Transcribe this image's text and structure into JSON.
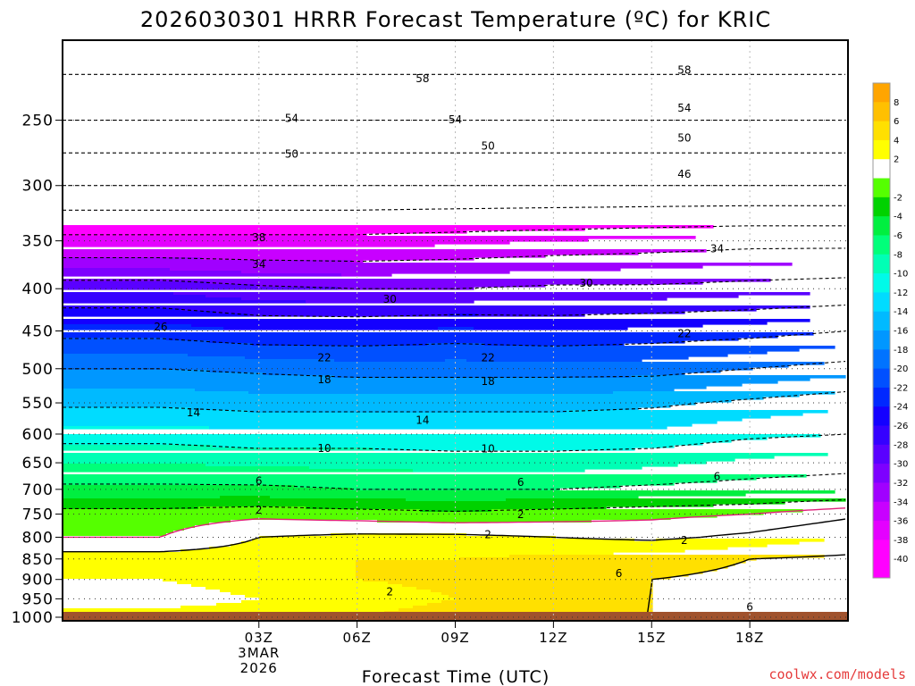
{
  "chart_data": {
    "type": "contour",
    "title": "2026030301 HRRR Forecast Temperature (ºC) for KRIC",
    "xlabel": "Forecast Time (UTC)",
    "credit": "coolwx.com/models",
    "y_axis": {
      "quantity": "pressure (hPa)",
      "scale": "log",
      "range": [
        1010,
        200
      ],
      "ticks": [
        250,
        300,
        350,
        400,
        450,
        500,
        550,
        600,
        650,
        700,
        750,
        800,
        850,
        900,
        950,
        1000
      ],
      "gridlines": "dotted at each tick"
    },
    "x_axis": {
      "quantity": "forecast hour",
      "range_hours": [
        -3,
        21
      ],
      "ticks": [
        {
          "hour": 3,
          "label": "03Z",
          "date_line1": "3MAR",
          "date_line2": "2026"
        },
        {
          "hour": 6,
          "label": "06Z"
        },
        {
          "hour": 9,
          "label": "09Z"
        },
        {
          "hour": 12,
          "label": "12Z"
        },
        {
          "hour": 15,
          "label": "15Z"
        },
        {
          "hour": 18,
          "label": "18Z"
        }
      ]
    },
    "x_hours": [
      0,
      3,
      6,
      9,
      12,
      15,
      18,
      21
    ],
    "colorbar": {
      "labels": [
        "8",
        "6",
        "4",
        "2",
        "-2",
        "-4",
        "-6",
        "-8",
        "-10",
        "-12",
        "-14",
        "-16",
        "-18",
        "-20",
        "-22",
        "-24",
        "-26",
        "-28",
        "-30",
        "-32",
        "-34",
        "-36",
        "-38",
        "-40"
      ],
      "levels": [
        10,
        8,
        6,
        4,
        2,
        0,
        -2,
        -4,
        -6,
        -8,
        -10,
        -12,
        -14,
        -16,
        -18,
        -20,
        -22,
        -24,
        -26,
        -28,
        -30,
        -32,
        -34,
        -36,
        -38,
        -40,
        -60
      ],
      "colors": [
        "#ffa500",
        "#ffc000",
        "#ffe000",
        "#ffff00",
        "#ffffff",
        "#55ff00",
        "#00d200",
        "#00ef40",
        "#00ff7a",
        "#00ffb5",
        "#00fae8",
        "#00dcff",
        "#00baff",
        "#0097ff",
        "#0073ff",
        "#0050ff",
        "#0028ff",
        "#1400ff",
        "#3500ff",
        "#5a00ff",
        "#7d00ff",
        "#a000ff",
        "#c800ff",
        "#e400ff",
        "#ff00ff",
        "#ff00ff"
      ]
    },
    "temperature_profile_hpa": [
      {
        "p": 1000,
        "t": [
          3,
          3,
          4,
          5,
          6,
          6,
          7,
          7
        ]
      },
      {
        "p": 950,
        "t": [
          1,
          2,
          3,
          4,
          5,
          6,
          6.5,
          7
        ]
      },
      {
        "p": 900,
        "t": [
          2,
          3,
          4,
          4.5,
          5,
          6,
          6.5,
          7
        ]
      },
      {
        "p": 850,
        "t": [
          3,
          3,
          4,
          4,
          4.5,
          5,
          6,
          6.5
        ]
      },
      {
        "p": 800,
        "t": [
          0,
          2,
          2.5,
          2.5,
          2,
          1.5,
          2.5,
          4
        ]
      },
      {
        "p": 750,
        "t": [
          -1,
          -0.5,
          -1,
          -1.5,
          -1,
          -0.5,
          0,
          1.5
        ]
      },
      {
        "p": 700,
        "t": [
          -5.5,
          -5.5,
          -6,
          -6,
          -6,
          -5.5,
          -5,
          -4.5
        ]
      },
      {
        "p": 650,
        "t": [
          -8,
          -8.5,
          -8.5,
          -9,
          -9,
          -8.5,
          -7.5,
          -7
        ]
      },
      {
        "p": 600,
        "t": [
          -11,
          -11.5,
          -11.5,
          -11.5,
          -11.5,
          -11.5,
          -10.5,
          -10
        ]
      },
      {
        "p": 550,
        "t": [
          -14.5,
          -15,
          -15,
          -15,
          -15,
          -14.5,
          -13.5,
          -12.5
        ]
      },
      {
        "p": 500,
        "t": [
          -18,
          -18.5,
          -19,
          -19,
          -19,
          -19,
          -18,
          -17
        ]
      },
      {
        "p": 450,
        "t": [
          -23,
          -24,
          -24,
          -23.5,
          -24,
          -23.5,
          -23,
          -22
        ]
      },
      {
        "p": 400,
        "t": [
          -28.5,
          -29.5,
          -30,
          -30,
          -29.5,
          -29.5,
          -29,
          -28.5
        ]
      },
      {
        "p": 350,
        "t": [
          -37,
          -37,
          -37,
          -36.5,
          -36,
          -35.5,
          -35,
          -35
        ]
      },
      {
        "p": 300,
        "t": [
          -46,
          -46,
          -46,
          -46,
          -46,
          -46,
          -46,
          -46
        ]
      },
      {
        "p": 250,
        "t": [
          -54,
          -54,
          -54,
          -54,
          -54,
          -54,
          -54,
          -54
        ]
      },
      {
        "p": 220,
        "t": [
          -58,
          -58,
          -58,
          -58,
          -58,
          -58,
          -58,
          -58
        ]
      }
    ],
    "contour_labels": [
      {
        "text": "58",
        "hour": 8,
        "p": 222
      },
      {
        "text": "58",
        "hour": 16,
        "p": 217
      },
      {
        "text": "54",
        "hour": 4,
        "p": 248
      },
      {
        "text": "54",
        "hour": 9,
        "p": 249
      },
      {
        "text": "54",
        "hour": 16,
        "p": 241
      },
      {
        "text": "50",
        "hour": 4,
        "p": 274
      },
      {
        "text": "50",
        "hour": 10,
        "p": 268
      },
      {
        "text": "50",
        "hour": 16,
        "p": 262
      },
      {
        "text": "46",
        "hour": 16,
        "p": 290
      },
      {
        "text": "38",
        "hour": 3,
        "p": 346
      },
      {
        "text": "34",
        "hour": 3,
        "p": 373
      },
      {
        "text": "34",
        "hour": 17,
        "p": 357
      },
      {
        "text": "30",
        "hour": 7,
        "p": 411
      },
      {
        "text": "30",
        "hour": 13,
        "p": 393
      },
      {
        "text": "26",
        "hour": 0,
        "p": 444
      },
      {
        "text": "22",
        "hour": 5,
        "p": 484
      },
      {
        "text": "22",
        "hour": 10,
        "p": 484
      },
      {
        "text": "22",
        "hour": 16,
        "p": 452
      },
      {
        "text": "18",
        "hour": 5,
        "p": 514
      },
      {
        "text": "18",
        "hour": 10,
        "p": 517
      },
      {
        "text": "14",
        "hour": 1,
        "p": 564
      },
      {
        "text": "14",
        "hour": 8,
        "p": 576
      },
      {
        "text": "10",
        "hour": 5,
        "p": 623
      },
      {
        "text": "10",
        "hour": 10,
        "p": 624
      },
      {
        "text": "6",
        "hour": 3,
        "p": 682
      },
      {
        "text": "6",
        "hour": 11,
        "p": 685
      },
      {
        "text": "6",
        "hour": 17,
        "p": 674
      },
      {
        "text": "2",
        "hour": 3,
        "p": 740
      },
      {
        "text": "2",
        "hour": 11,
        "p": 749
      },
      {
        "text": "2",
        "hour": 10,
        "p": 792
      },
      {
        "text": "2",
        "hour": 16,
        "p": 805
      },
      {
        "text": "6",
        "hour": 14,
        "p": 883
      },
      {
        "text": "6",
        "hour": 18,
        "p": 969
      },
      {
        "text": "2",
        "hour": 7,
        "p": 929
      }
    ]
  }
}
